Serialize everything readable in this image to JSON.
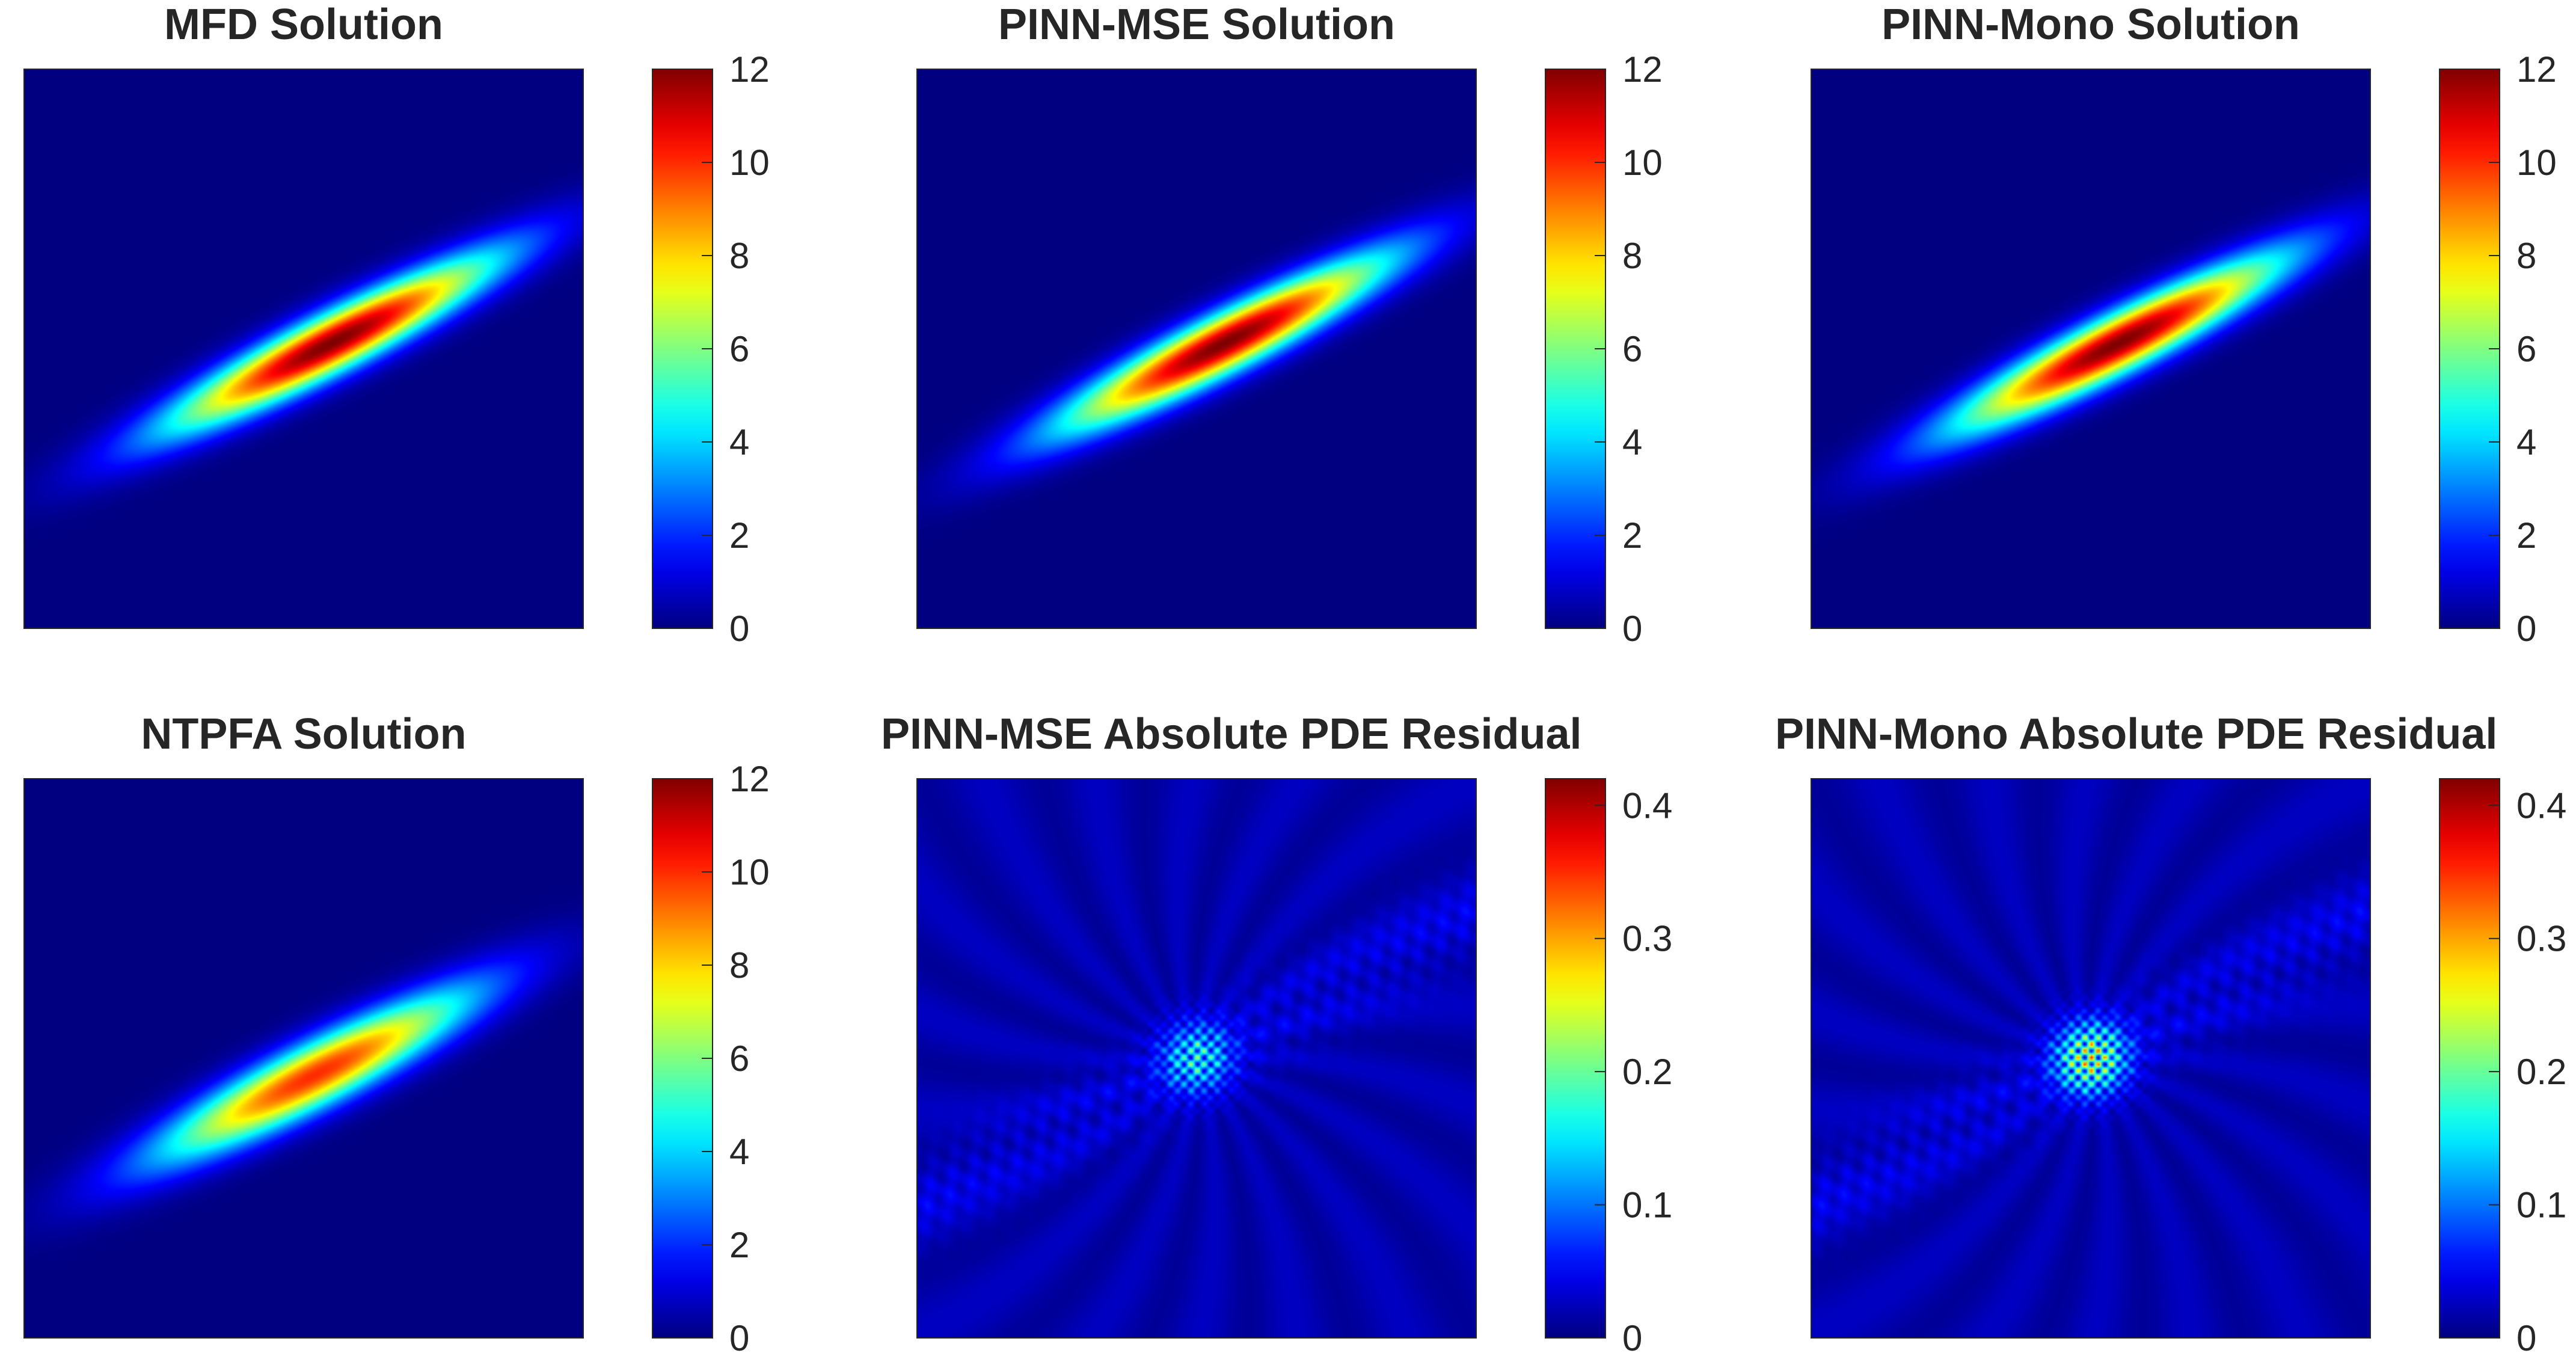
{
  "chart_data": [
    {
      "type": "heatmap",
      "title": "MFD Solution",
      "colormap": "jet",
      "field": {
        "kind": "gaussian-ellipse",
        "center": [
          0.55,
          0.51
        ],
        "semi_major": 0.34,
        "semi_minor": 0.036,
        "angle_deg": 27,
        "peak": 12
      },
      "colorbar": {
        "range": [
          0,
          12
        ],
        "ticks": [
          "0",
          "2",
          "4",
          "6",
          "8",
          "10",
          "12"
        ]
      }
    },
    {
      "type": "heatmap",
      "title": "PINN-MSE Solution",
      "colormap": "jet",
      "field": {
        "kind": "gaussian-ellipse",
        "center": [
          0.55,
          0.51
        ],
        "semi_major": 0.34,
        "semi_minor": 0.036,
        "angle_deg": 27,
        "peak": 12
      },
      "colorbar": {
        "range": [
          0,
          12
        ],
        "ticks": [
          "0",
          "2",
          "4",
          "6",
          "8",
          "10",
          "12"
        ]
      }
    },
    {
      "type": "heatmap",
      "title": "PINN-Mono Solution",
      "colormap": "jet",
      "field": {
        "kind": "gaussian-ellipse",
        "center": [
          0.55,
          0.51
        ],
        "semi_major": 0.34,
        "semi_minor": 0.036,
        "angle_deg": 27,
        "peak": 12
      },
      "colorbar": {
        "range": [
          0,
          12
        ],
        "ticks": [
          "0",
          "2",
          "4",
          "6",
          "8",
          "10",
          "12"
        ]
      }
    },
    {
      "type": "heatmap",
      "title": "NTPFA Solution",
      "colormap": "jet",
      "field": {
        "kind": "gaussian-ellipse",
        "center": [
          0.52,
          0.47
        ],
        "semi_major": 0.33,
        "semi_minor": 0.04,
        "angle_deg": 27,
        "peak": 10
      },
      "colorbar": {
        "range": [
          0,
          12
        ],
        "ticks": [
          "0",
          "2",
          "4",
          "6",
          "8",
          "10",
          "12"
        ]
      }
    },
    {
      "type": "heatmap",
      "title": "PINN-MSE Absolute PDE Residual",
      "colormap": "jet",
      "field": {
        "kind": "residual",
        "center": [
          0.5,
          0.5
        ],
        "peak": 0.2,
        "background": 0.03
      },
      "colorbar": {
        "range": [
          0,
          0.42
        ],
        "ticks": [
          "0",
          "0.1",
          "0.2",
          "0.3",
          "0.4"
        ]
      }
    },
    {
      "type": "heatmap",
      "title": "PINN-Mono Absolute PDE Residual",
      "colormap": "jet",
      "field": {
        "kind": "residual",
        "center": [
          0.5,
          0.5
        ],
        "peak": 0.32,
        "background": 0.03
      },
      "colorbar": {
        "range": [
          0,
          0.42
        ],
        "ticks": [
          "0",
          "0.1",
          "0.2",
          "0.3",
          "0.4"
        ]
      }
    }
  ]
}
